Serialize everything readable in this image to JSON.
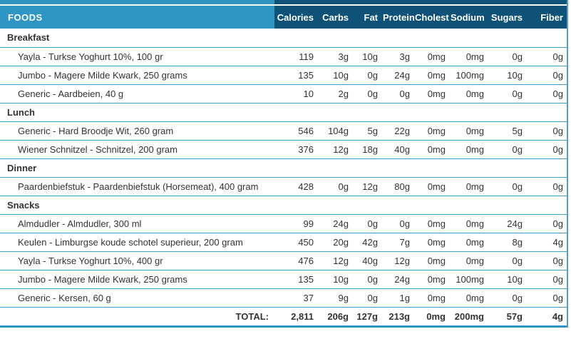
{
  "header": {
    "foods_label": "FOODS",
    "columns": [
      "Calories",
      "Carbs",
      "Fat",
      "Protein",
      "Cholest",
      "Sodium",
      "Sugars",
      "Fiber"
    ]
  },
  "sections": [
    {
      "name": "Breakfast",
      "items": [
        {
          "name": "Yayla - Turkse Yoghurt 10%, 100 gr",
          "values": [
            "119",
            "3g",
            "10g",
            "3g",
            "0mg",
            "0mg",
            "0g",
            "0g"
          ]
        },
        {
          "name": "Jumbo - Magere Milde Kwark, 250 grams",
          "values": [
            "135",
            "10g",
            "0g",
            "24g",
            "0mg",
            "100mg",
            "10g",
            "0g"
          ]
        },
        {
          "name": "Generic - Aardbeien, 40 g",
          "values": [
            "10",
            "2g",
            "0g",
            "0g",
            "0mg",
            "0mg",
            "0g",
            "0g"
          ]
        }
      ]
    },
    {
      "name": "Lunch",
      "items": [
        {
          "name": "Generic - Hard Broodje Wit, 260 gram",
          "values": [
            "546",
            "104g",
            "5g",
            "22g",
            "0mg",
            "0mg",
            "5g",
            "0g"
          ]
        },
        {
          "name": "Wiener Schnitzel - Schnitzel, 200 gram",
          "values": [
            "376",
            "12g",
            "18g",
            "40g",
            "0mg",
            "0mg",
            "0g",
            "0g"
          ]
        }
      ]
    },
    {
      "name": "Dinner",
      "items": [
        {
          "name": "Paardenbiefstuk - Paardenbiefstuk (Horsemeat), 400 gram",
          "values": [
            "428",
            "0g",
            "12g",
            "80g",
            "0mg",
            "0mg",
            "0g",
            "0g"
          ]
        }
      ]
    },
    {
      "name": "Snacks",
      "items": [
        {
          "name": "Almdudler - Almdudler, 300 ml",
          "values": [
            "99",
            "24g",
            "0g",
            "0g",
            "0mg",
            "0mg",
            "24g",
            "0g"
          ]
        },
        {
          "name": "Keulen - Limburgse koude schotel superieur, 200 gram",
          "values": [
            "450",
            "20g",
            "42g",
            "7g",
            "0mg",
            "0mg",
            "8g",
            "4g"
          ]
        },
        {
          "name": "Yayla - Turkse Yoghurt 10%, 400 gr",
          "values": [
            "476",
            "12g",
            "40g",
            "12g",
            "0mg",
            "0mg",
            "0g",
            "0g"
          ]
        },
        {
          "name": "Jumbo - Magere Milde Kwark, 250 grams",
          "values": [
            "135",
            "10g",
            "0g",
            "24g",
            "0mg",
            "100mg",
            "10g",
            "0g"
          ]
        },
        {
          "name": "Generic - Kersen, 60 g",
          "values": [
            "37",
            "9g",
            "0g",
            "1g",
            "0mg",
            "0mg",
            "0g",
            "0g"
          ]
        }
      ]
    }
  ],
  "total": {
    "label": "TOTAL:",
    "values": [
      "2,811",
      "206g",
      "127g",
      "213g",
      "0mg",
      "200mg",
      "57g",
      "4g"
    ]
  },
  "colors": {
    "header_light_blue": "#2e95c5",
    "header_dark_blue": "#0e5377",
    "row_line_blue": "#3e9ac9"
  }
}
